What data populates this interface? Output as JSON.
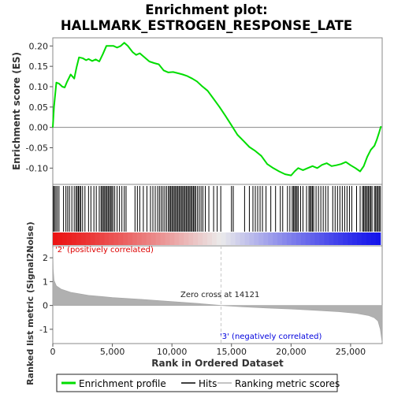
{
  "chart_data": {
    "type": "line",
    "title_line1": "Enrichment plot:",
    "title_line2": "HALLMARK_ESTROGEN_RESPONSE_LATE",
    "xlabel": "Rank in Ordered Dataset",
    "ylabel_top": "Enrichment score (ES)",
    "ylabel_bottom": "Ranked list metric (Signal2Noise)",
    "xlim": [
      0,
      27650
    ],
    "xticks": [
      0,
      5000,
      10000,
      15000,
      20000,
      25000
    ],
    "xtick_labels": [
      "0",
      "5,000",
      "10,000",
      "15,000",
      "20,000",
      "25,000"
    ],
    "es_ylim": [
      -0.14,
      0.22
    ],
    "es_yticks": [
      0.2,
      0.15,
      0.1,
      0.05,
      0.0,
      -0.05,
      -0.1
    ],
    "es_ytick_labels": [
      "0.20",
      "0.15",
      "0.10",
      "0.05",
      "0.00",
      "-0.05",
      "-0.10"
    ],
    "metric_ylim": [
      -1.6,
      2.5
    ],
    "metric_yticks": [
      2,
      1,
      0,
      -1
    ],
    "metric_ytick_labels": [
      "2",
      "1",
      "0",
      "-1"
    ],
    "zero_cross_rank": 14121,
    "annotations": {
      "positive": "'2' (positively correlated)",
      "negative": "'3' (negatively correlated)",
      "zero_cross": "Zero cross at 14121"
    },
    "legend": {
      "enrichment": "Enrichment profile",
      "hits": "Hits",
      "ranking": "Ranking metric scores"
    },
    "colors": {
      "enrichment": "#00dd00",
      "hits": "#000000",
      "ranking_fill": "#b0b0b0",
      "positive_text": "#dd0000",
      "negative_text": "#0000dd",
      "zero_line": "#c8c8c8"
    },
    "es_curve": [
      [
        0,
        0.0
      ],
      [
        100,
        0.05
      ],
      [
        300,
        0.11
      ],
      [
        500,
        0.108
      ],
      [
        800,
        0.1
      ],
      [
        1000,
        0.098
      ],
      [
        1200,
        0.112
      ],
      [
        1500,
        0.13
      ],
      [
        1800,
        0.12
      ],
      [
        2000,
        0.148
      ],
      [
        2200,
        0.172
      ],
      [
        2500,
        0.17
      ],
      [
        2800,
        0.165
      ],
      [
        3000,
        0.168
      ],
      [
        3300,
        0.163
      ],
      [
        3600,
        0.167
      ],
      [
        3900,
        0.162
      ],
      [
        4200,
        0.18
      ],
      [
        4500,
        0.2
      ],
      [
        4800,
        0.2
      ],
      [
        5100,
        0.2
      ],
      [
        5400,
        0.196
      ],
      [
        5700,
        0.2
      ],
      [
        6000,
        0.208
      ],
      [
        6300,
        0.2
      ],
      [
        6700,
        0.185
      ],
      [
        7000,
        0.178
      ],
      [
        7300,
        0.182
      ],
      [
        7700,
        0.172
      ],
      [
        8100,
        0.162
      ],
      [
        8500,
        0.158
      ],
      [
        8900,
        0.155
      ],
      [
        9300,
        0.14
      ],
      [
        9700,
        0.135
      ],
      [
        10100,
        0.136
      ],
      [
        10500,
        0.133
      ],
      [
        10900,
        0.13
      ],
      [
        11300,
        0.126
      ],
      [
        11700,
        0.12
      ],
      [
        12100,
        0.113
      ],
      [
        12500,
        0.102
      ],
      [
        13000,
        0.09
      ],
      [
        13500,
        0.07
      ],
      [
        14000,
        0.05
      ],
      [
        14500,
        0.028
      ],
      [
        15000,
        0.005
      ],
      [
        15500,
        -0.018
      ],
      [
        16000,
        -0.033
      ],
      [
        16500,
        -0.048
      ],
      [
        17000,
        -0.058
      ],
      [
        17500,
        -0.07
      ],
      [
        18000,
        -0.09
      ],
      [
        18500,
        -0.1
      ],
      [
        19000,
        -0.108
      ],
      [
        19500,
        -0.115
      ],
      [
        20000,
        -0.118
      ],
      [
        20300,
        -0.108
      ],
      [
        20600,
        -0.1
      ],
      [
        21000,
        -0.105
      ],
      [
        21400,
        -0.1
      ],
      [
        21800,
        -0.095
      ],
      [
        22200,
        -0.1
      ],
      [
        22600,
        -0.092
      ],
      [
        23000,
        -0.088
      ],
      [
        23400,
        -0.095
      ],
      [
        23800,
        -0.093
      ],
      [
        24200,
        -0.09
      ],
      [
        24600,
        -0.085
      ],
      [
        25000,
        -0.093
      ],
      [
        25400,
        -0.1
      ],
      [
        25800,
        -0.108
      ],
      [
        26100,
        -0.095
      ],
      [
        26400,
        -0.072
      ],
      [
        26700,
        -0.055
      ],
      [
        27000,
        -0.045
      ],
      [
        27200,
        -0.03
      ],
      [
        27400,
        -0.012
      ],
      [
        27550,
        0.003
      ]
    ],
    "hit_ranks": [
      60,
      140,
      260,
      380,
      520,
      900,
      1100,
      1250,
      1400,
      1600,
      1800,
      1950,
      2050,
      2150,
      2250,
      2350,
      2500,
      2700,
      3000,
      3200,
      3450,
      3650,
      3900,
      4050,
      4150,
      4250,
      4350,
      4450,
      4550,
      4650,
      4750,
      4850,
      4950,
      5050,
      5200,
      5400,
      5600,
      5800,
      6000,
      6150,
      6900,
      7100,
      7300,
      7600,
      7900,
      8200,
      8400,
      8600,
      8800,
      8950,
      9100,
      9250,
      9400,
      9550,
      9700,
      9800,
      9900,
      10000,
      10100,
      10200,
      10300,
      10400,
      10500,
      10600,
      10700,
      10800,
      10900,
      11000,
      11100,
      11200,
      11300,
      11400,
      11500,
      11600,
      11700,
      11800,
      11900,
      12000,
      12150,
      12300,
      12450,
      12600,
      12800,
      13100,
      13500,
      13800,
      14100,
      15000,
      15150,
      16100,
      16500,
      16800,
      17000,
      17200,
      17400,
      17600,
      17900,
      18300,
      18700,
      19100,
      19300,
      19700,
      19900,
      20100,
      20200,
      20300,
      20400,
      20500,
      20600,
      20800,
      21000,
      21300,
      21500,
      21600,
      21700,
      21800,
      21900,
      22100,
      22300,
      22500,
      22700,
      22900,
      23100,
      23500,
      23700,
      23900,
      24100,
      24300,
      24500,
      24700,
      24900,
      25100,
      25500,
      25800,
      26000,
      26100,
      26200,
      26300,
      26400,
      26500,
      26600,
      26700,
      26800,
      27000,
      27100,
      27200,
      27300,
      27400,
      27500
    ],
    "metric_curve": [
      [
        0,
        2.4
      ],
      [
        30,
        1.5
      ],
      [
        100,
        1.05
      ],
      [
        300,
        0.82
      ],
      [
        700,
        0.68
      ],
      [
        1500,
        0.55
      ],
      [
        3000,
        0.42
      ],
      [
        5000,
        0.33
      ],
      [
        7500,
        0.25
      ],
      [
        10000,
        0.16
      ],
      [
        12000,
        0.09
      ],
      [
        14121,
        0.0
      ],
      [
        16000,
        -0.06
      ],
      [
        18000,
        -0.11
      ],
      [
        20000,
        -0.15
      ],
      [
        22000,
        -0.2
      ],
      [
        24000,
        -0.26
      ],
      [
        25500,
        -0.33
      ],
      [
        26500,
        -0.42
      ],
      [
        27000,
        -0.52
      ],
      [
        27300,
        -0.65
      ],
      [
        27500,
        -1.0
      ],
      [
        27650,
        -1.55
      ]
    ]
  }
}
